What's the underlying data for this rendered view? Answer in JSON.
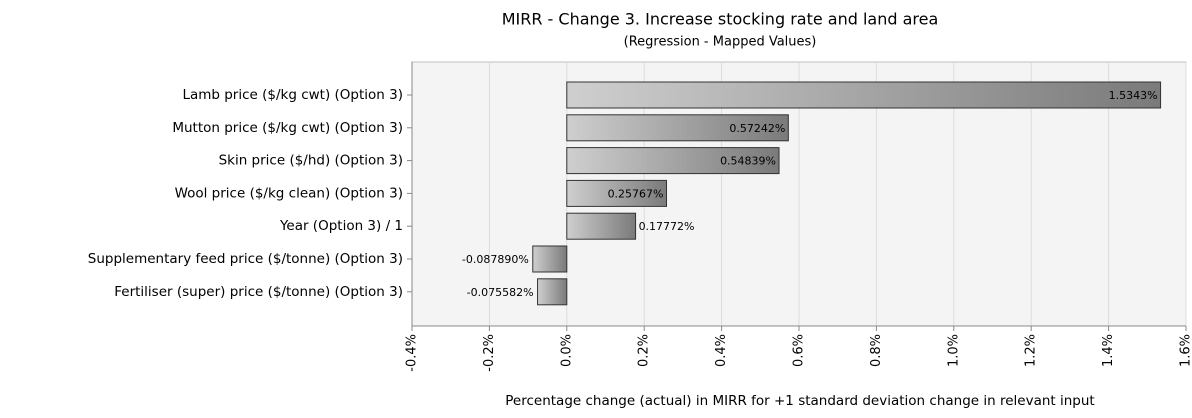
{
  "chart_data": {
    "type": "bar",
    "orientation": "horizontal",
    "title": "MIRR - Change 3. Increase stocking rate and land area",
    "subtitle": "(Regression - Mapped Values)",
    "x_label": "Percentage change (actual) in MIRR for +1 standard deviation change in relevant input",
    "categories": [
      "Lamb price ($/kg cwt) (Option 3)",
      "Mutton price ($/kg cwt) (Option 3)",
      "Skin price ($/hd) (Option 3)",
      "Wool price ($/kg clean) (Option 3)",
      "Year (Option 3) / 1",
      "Supplementary feed price ($/tonne) (Option 3)",
      "Fertiliser (super) price ($/tonne) (Option 3)"
    ],
    "values": [
      1.5343,
      0.57242,
      0.54839,
      0.25767,
      0.17772,
      -0.08789,
      -0.075582
    ],
    "value_labels": [
      "1.5343%",
      "0.57242%",
      "0.54839%",
      "0.25767%",
      "0.17772%",
      "-0.087890%",
      "-0.075582%"
    ],
    "color": "#7a7a7a",
    "xlim": [
      -0.4,
      1.6
    ],
    "xticks": [
      {
        "value": -0.4,
        "label": "-0.4%"
      },
      {
        "value": -0.2,
        "label": "-0.2%"
      },
      {
        "value": 0,
        "label": "0.0%"
      },
      {
        "value": 0.2,
        "label": "0.2%"
      },
      {
        "value": 0.4,
        "label": "0.4%"
      },
      {
        "value": 0.6,
        "label": "0.6%"
      },
      {
        "value": 0.8,
        "label": "0.8%"
      },
      {
        "value": 1.0,
        "label": "1.0%"
      },
      {
        "value": 1.2,
        "label": "1.2%"
      },
      {
        "value": 1.4,
        "label": "1.4%"
      },
      {
        "value": 1.6,
        "label": "1.6%"
      }
    ],
    "grid": true
  }
}
